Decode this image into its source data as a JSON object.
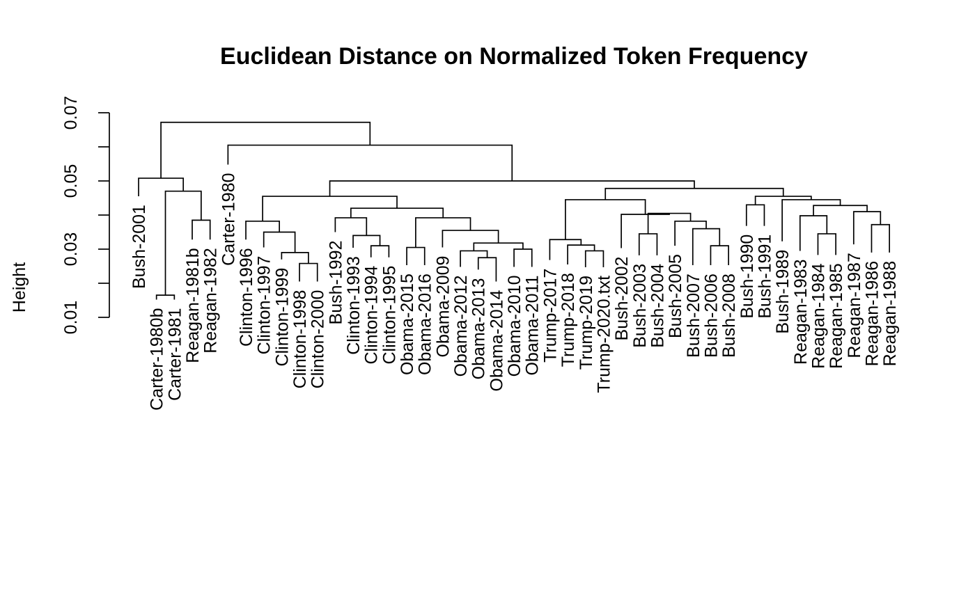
{
  "chart_data": {
    "type": "dendrogram",
    "title": "Euclidean Distance on Normalized Token Frequency",
    "ylabel": "Height",
    "xlabel": "",
    "ylim": [
      0.01,
      0.07
    ],
    "yticks": [
      "0.01",
      "0.03",
      "0.05",
      "0.07"
    ],
    "ytick_values": [
      0.01,
      0.02,
      0.03,
      0.04,
      0.05,
      0.06,
      0.07
    ],
    "grid": false,
    "leaves": [
      "Bush-2001",
      "Carter-1980b",
      "Carter-1981",
      "Reagan-1981b",
      "Reagan-1982",
      "Carter-1980",
      "Clinton-1996",
      "Clinton-1997",
      "Clinton-1999",
      "Clinton-1998",
      "Clinton-2000",
      "Bush-1992",
      "Clinton-1993",
      "Clinton-1994",
      "Clinton-1995",
      "Obama-2015",
      "Obama-2016",
      "Obama-2009",
      "Obama-2012",
      "Obama-2013",
      "Obama-2014",
      "Obama-2010",
      "Obama-2011",
      "Trump-2017",
      "Trump-2018",
      "Trump-2019",
      "Trump-2020.txt",
      "Bush-2002",
      "Bush-2003",
      "Bush-2004",
      "Bush-2005",
      "Bush-2007",
      "Bush-2006",
      "Bush-2008",
      "Bush-1990",
      "Bush-1991",
      "Bush-1989",
      "Reagan-1983",
      "Reagan-1984",
      "Reagan-1985",
      "Reagan-1987",
      "Reagan-1986",
      "Reagan-1988"
    ],
    "leaf_heights": [
      0.0455,
      0.0152,
      0.0152,
      0.0328,
      0.0328,
      0.0548,
      0.0328,
      0.0305,
      0.027,
      0.0205,
      0.0205,
      0.035,
      0.0304,
      0.0276,
      0.0276,
      0.0253,
      0.0253,
      0.0305,
      0.0248,
      0.024,
      0.0205,
      0.0248,
      0.0248,
      0.0268,
      0.0255,
      0.0247,
      0.0247,
      0.0303,
      0.0282,
      0.0282,
      0.031,
      0.0253,
      0.0253,
      0.0253,
      0.0368,
      0.0368,
      0.0323,
      0.0295,
      0.0283,
      0.0283,
      0.0314,
      0.029,
      0.029
    ],
    "merges": [
      {
        "children": [
          "Carter-1980b",
          "Carter-1981"
        ],
        "height": 0.0165
      },
      {
        "children": [
          "Reagan-1981b",
          "Reagan-1982"
        ],
        "height": 0.0385
      },
      {
        "children": [
          "m0",
          "m1"
        ],
        "height": 0.047
      },
      {
        "children": [
          "Bush-2001",
          "m2"
        ],
        "height": 0.0508
      },
      {
        "children": [
          "Clinton-1998",
          "Clinton-2000"
        ],
        "height": 0.0258
      },
      {
        "children": [
          "Clinton-1999",
          "m4"
        ],
        "height": 0.029
      },
      {
        "children": [
          "Clinton-1997",
          "m5"
        ],
        "height": 0.035
      },
      {
        "children": [
          "Clinton-1996",
          "m6"
        ],
        "height": 0.0382
      },
      {
        "children": [
          "Clinton-1994",
          "Clinton-1995"
        ],
        "height": 0.031
      },
      {
        "children": [
          "Clinton-1993",
          "m8"
        ],
        "height": 0.034
      },
      {
        "children": [
          "Bush-1992",
          "m9"
        ],
        "height": 0.0392
      },
      {
        "children": [
          "Obama-2015",
          "Obama-2016"
        ],
        "height": 0.0305
      },
      {
        "children": [
          "Obama-2013",
          "Obama-2014"
        ],
        "height": 0.0275
      },
      {
        "children": [
          "Obama-2012",
          "m12"
        ],
        "height": 0.0295
      },
      {
        "children": [
          "Obama-2010",
          "Obama-2011"
        ],
        "height": 0.03
      },
      {
        "children": [
          "m13",
          "m14"
        ],
        "height": 0.0318
      },
      {
        "children": [
          "Obama-2009",
          "m15"
        ],
        "height": 0.0355
      },
      {
        "children": [
          "m11",
          "m16"
        ],
        "height": 0.0392
      },
      {
        "children": [
          "m10",
          "m17"
        ],
        "height": 0.042
      },
      {
        "children": [
          "m7",
          "m18"
        ],
        "height": 0.0455
      },
      {
        "children": [
          "Trump-2019",
          "Trump-2020.txt"
        ],
        "height": 0.0295
      },
      {
        "children": [
          "Trump-2018",
          "m20"
        ],
        "height": 0.0312
      },
      {
        "children": [
          "Trump-2017",
          "m21"
        ],
        "height": 0.0328
      },
      {
        "children": [
          "Bush-2003",
          "Bush-2004"
        ],
        "height": 0.0345
      },
      {
        "children": [
          "Bush-2006",
          "Bush-2008"
        ],
        "height": 0.031
      },
      {
        "children": [
          "Bush-2007",
          "m24"
        ],
        "height": 0.036
      },
      {
        "children": [
          "Bush-2005",
          "m25"
        ],
        "height": 0.0382
      },
      {
        "children": [
          "m23",
          "m26"
        ],
        "height": 0.0405
      },
      {
        "children": [
          "Bush-2002",
          "m27"
        ],
        "height": 0.0402
      },
      {
        "children": [
          "m22",
          "m28"
        ],
        "height": 0.0445
      },
      {
        "children": [
          "Bush-1990",
          "Bush-1991"
        ],
        "height": 0.043
      },
      {
        "children": [
          "Reagan-1984",
          "Reagan-1985"
        ],
        "height": 0.0345
      },
      {
        "children": [
          "Reagan-1983",
          "m31"
        ],
        "height": 0.0398
      },
      {
        "children": [
          "Reagan-1986",
          "Reagan-1988"
        ],
        "height": 0.0372
      },
      {
        "children": [
          "Reagan-1987",
          "m33"
        ],
        "height": 0.041
      },
      {
        "children": [
          "m32",
          "m34"
        ],
        "height": 0.0428
      },
      {
        "children": [
          "Bush-1989",
          "m35"
        ],
        "height": 0.0445
      },
      {
        "children": [
          "m30",
          "m36"
        ],
        "height": 0.0455
      },
      {
        "children": [
          "m29",
          "m37"
        ],
        "height": 0.0478
      },
      {
        "children": [
          "m19",
          "m38"
        ],
        "height": 0.05
      },
      {
        "children": [
          "Carter-1980",
          "m39"
        ],
        "height": 0.0605
      },
      {
        "children": [
          "m3",
          "m40"
        ],
        "height": 0.0672
      }
    ]
  }
}
